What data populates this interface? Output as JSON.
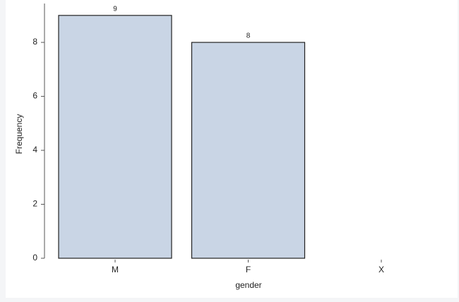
{
  "chart_data": {
    "type": "bar",
    "x_label": "gender",
    "y_label": "Frequency",
    "categories": [
      "M",
      "F",
      "X"
    ],
    "values": [
      9,
      8,
      null
    ],
    "color": "#c9d5e5",
    "ylim": [
      0,
      9.44
    ],
    "yticks": [
      0,
      2,
      4,
      6,
      8
    ]
  }
}
